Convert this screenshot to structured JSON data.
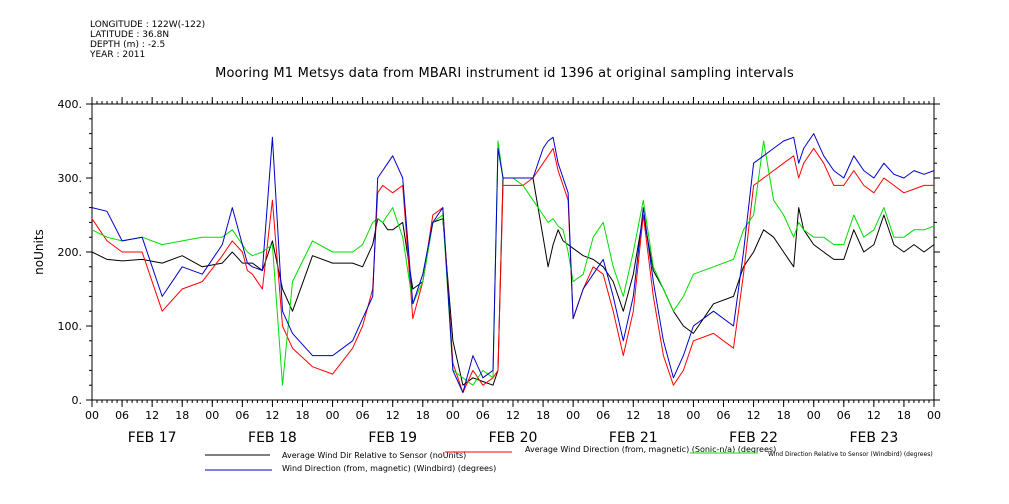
{
  "header": {
    "longitude": "LONGITUDE : 122W(-122)",
    "latitude": "LATITUDE : 36.8N",
    "depth": "DEPTH (m) : -2.5",
    "year": "YEAR : 2011"
  },
  "chart_data": {
    "type": "line",
    "title": "Mooring M1 Metsys data from MBARI instrument id 1396 at original sampling intervals",
    "ylabel": "noUnits",
    "xlabel": "",
    "ylim": [
      0,
      400
    ],
    "xlim": [
      0,
      168
    ],
    "y_ticks": [
      "0.",
      "100.",
      "200.",
      "300.",
      "400."
    ],
    "x_hour_ticks": [
      "00",
      "06",
      "12",
      "18",
      "00",
      "06",
      "12",
      "18",
      "00",
      "06",
      "12",
      "18",
      "00",
      "06",
      "12",
      "18",
      "00",
      "06",
      "12",
      "18",
      "00",
      "06",
      "12",
      "18",
      "00",
      "06",
      "12",
      "18",
      "00"
    ],
    "day_labels": [
      "FEB 17",
      "FEB 18",
      "FEB 19",
      "FEB 20",
      "FEB 21",
      "FEB 22",
      "FEB 23"
    ],
    "series": [
      {
        "name": "Average Wind Dir Relative to Sensor (noUnits)",
        "color": "#000000",
        "x": [
          0,
          3,
          6,
          10,
          14,
          18,
          22,
          26,
          28,
          30,
          31,
          32,
          34,
          36,
          38,
          40,
          44,
          48,
          52,
          54,
          56,
          57,
          58,
          59,
          60,
          62,
          64,
          66,
          68,
          70,
          72,
          74,
          76,
          78,
          80,
          81,
          82,
          84,
          86,
          88,
          90,
          91,
          92,
          93,
          94,
          95,
          96,
          98,
          100,
          102,
          104,
          106,
          108,
          110,
          112,
          114,
          116,
          118,
          120,
          124,
          128,
          130,
          132,
          134,
          136,
          138,
          140,
          141,
          142,
          144,
          146,
          148,
          150,
          152,
          154,
          156,
          158,
          160,
          162,
          164,
          166,
          168
        ],
        "y": [
          200,
          190,
          188,
          190,
          185,
          195,
          180,
          185,
          200,
          185,
          185,
          185,
          175,
          215,
          150,
          120,
          195,
          185,
          185,
          180,
          210,
          245,
          240,
          230,
          230,
          240,
          150,
          160,
          240,
          245,
          80,
          20,
          30,
          25,
          20,
          40,
          300,
          300,
          300,
          300,
          220,
          180,
          210,
          230,
          215,
          210,
          205,
          195,
          190,
          180,
          160,
          120,
          170,
          250,
          175,
          150,
          120,
          100,
          90,
          130,
          140,
          180,
          200,
          230,
          220,
          200,
          180,
          260,
          230,
          210,
          200,
          190,
          190,
          230,
          200,
          210,
          250,
          210,
          200,
          210,
          200,
          210
        ]
      },
      {
        "name": "Average Wind Direction (from, magnetic) (Sonic-n/a) (degrees)",
        "color": "#ff0000",
        "x": [
          0,
          3,
          6,
          10,
          14,
          18,
          22,
          26,
          28,
          30,
          31,
          32,
          34,
          36,
          38,
          40,
          44,
          48,
          52,
          54,
          56,
          57,
          58,
          59,
          60,
          62,
          64,
          66,
          68,
          70,
          72,
          74,
          76,
          78,
          80,
          81,
          82,
          84,
          86,
          88,
          90,
          91,
          92,
          93,
          94,
          95,
          96,
          98,
          100,
          102,
          104,
          106,
          108,
          110,
          112,
          114,
          116,
          118,
          120,
          124,
          128,
          130,
          132,
          134,
          136,
          138,
          140,
          141,
          142,
          144,
          146,
          148,
          150,
          152,
          154,
          156,
          158,
          160,
          162,
          164,
          166,
          168
        ],
        "y": [
          245,
          215,
          200,
          200,
          120,
          150,
          160,
          195,
          215,
          200,
          175,
          170,
          150,
          270,
          100,
          70,
          45,
          35,
          70,
          100,
          150,
          280,
          290,
          285,
          280,
          290,
          110,
          160,
          250,
          260,
          50,
          10,
          40,
          20,
          30,
          40,
          290,
          290,
          290,
          300,
          320,
          330,
          340,
          310,
          290,
          270,
          110,
          150,
          180,
          170,
          120,
          60,
          120,
          250,
          140,
          60,
          20,
          40,
          80,
          90,
          70,
          170,
          290,
          300,
          310,
          320,
          330,
          300,
          320,
          340,
          320,
          290,
          290,
          310,
          290,
          280,
          300,
          290,
          280,
          285,
          290,
          290
        ]
      },
      {
        "name": "Wind Direction Relative to Sensor (Windbird) (degrees)",
        "color": "#00dd00",
        "x": [
          0,
          3,
          6,
          10,
          14,
          18,
          22,
          26,
          28,
          30,
          31,
          32,
          34,
          36,
          38,
          40,
          44,
          48,
          52,
          54,
          56,
          57,
          58,
          59,
          60,
          62,
          64,
          66,
          68,
          70,
          72,
          74,
          76,
          78,
          80,
          81,
          82,
          84,
          86,
          88,
          90,
          91,
          92,
          93,
          94,
          95,
          96,
          98,
          100,
          102,
          104,
          106,
          108,
          110,
          112,
          114,
          116,
          118,
          120,
          124,
          128,
          130,
          132,
          134,
          136,
          138,
          140,
          141,
          142,
          144,
          146,
          148,
          150,
          152,
          154,
          156,
          158,
          160,
          162,
          164,
          166,
          168
        ],
        "y": [
          230,
          220,
          215,
          220,
          210,
          215,
          220,
          220,
          230,
          210,
          200,
          195,
          200,
          210,
          20,
          160,
          215,
          200,
          200,
          210,
          240,
          245,
          240,
          250,
          260,
          220,
          130,
          160,
          240,
          250,
          40,
          30,
          20,
          40,
          30,
          350,
          300,
          300,
          290,
          270,
          250,
          240,
          245,
          235,
          230,
          200,
          160,
          170,
          220,
          240,
          180,
          140,
          200,
          270,
          180,
          150,
          120,
          140,
          170,
          180,
          190,
          230,
          250,
          350,
          270,
          250,
          220,
          240,
          230,
          220,
          220,
          210,
          210,
          250,
          220,
          230,
          260,
          220,
          220,
          230,
          230,
          235
        ]
      },
      {
        "name": "Wind Direction (from, magnetic) (Windbird) (degrees)",
        "color": "#0000cc",
        "x": [
          0,
          3,
          6,
          10,
          14,
          18,
          22,
          26,
          28,
          30,
          31,
          32,
          34,
          36,
          38,
          40,
          44,
          48,
          52,
          54,
          56,
          57,
          58,
          59,
          60,
          62,
          64,
          66,
          68,
          70,
          72,
          74,
          76,
          78,
          80,
          81,
          82,
          84,
          86,
          88,
          90,
          91,
          92,
          93,
          94,
          95,
          96,
          98,
          100,
          102,
          104,
          106,
          108,
          110,
          112,
          114,
          116,
          118,
          120,
          124,
          128,
          130,
          132,
          134,
          136,
          138,
          140,
          141,
          142,
          144,
          146,
          148,
          150,
          152,
          154,
          156,
          158,
          160,
          162,
          164,
          166,
          168
        ],
        "y": [
          260,
          255,
          215,
          220,
          140,
          180,
          170,
          210,
          260,
          210,
          185,
          180,
          175,
          355,
          120,
          90,
          60,
          60,
          80,
          110,
          140,
          300,
          310,
          320,
          330,
          300,
          130,
          170,
          240,
          260,
          40,
          10,
          60,
          30,
          40,
          340,
          300,
          300,
          300,
          300,
          340,
          350,
          355,
          320,
          300,
          280,
          110,
          150,
          170,
          190,
          140,
          80,
          140,
          260,
          160,
          80,
          30,
          60,
          100,
          120,
          100,
          200,
          320,
          330,
          340,
          350,
          355,
          320,
          340,
          360,
          330,
          310,
          300,
          330,
          310,
          300,
          320,
          305,
          300,
          310,
          305,
          310
        ]
      }
    ]
  }
}
